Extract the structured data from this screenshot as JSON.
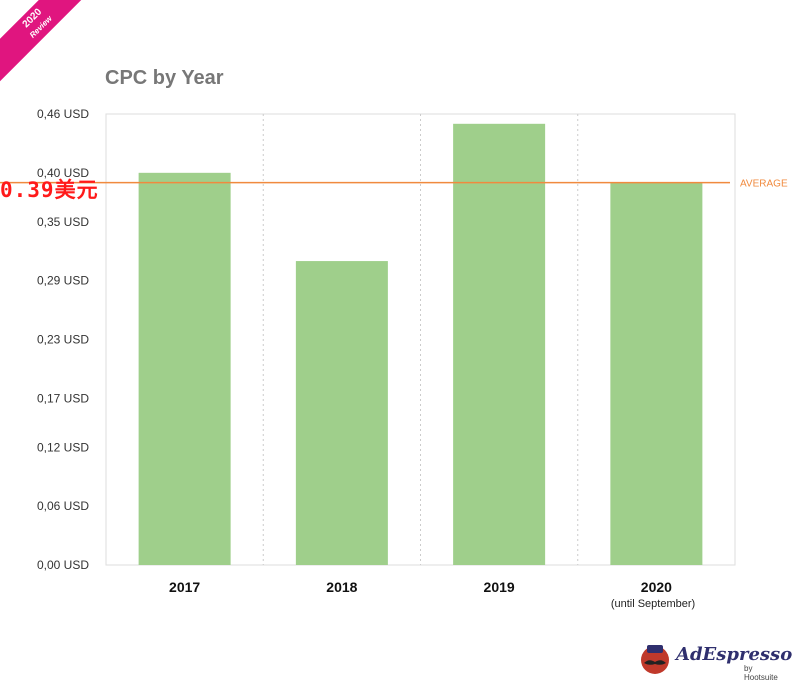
{
  "badge": {
    "year": "2020",
    "word": "Review"
  },
  "overlay_label": "0.39美元",
  "x_subtitle": "(until September)",
  "logo": {
    "name": "AdEspresso",
    "by": "by Hootsuite",
    "icon": "mustache-mascot-icon"
  },
  "colors": {
    "bar": "#9fcf8b",
    "average": "#f08a3e",
    "title": "#777777",
    "badge": "#e0157f"
  },
  "chart_data": {
    "type": "bar",
    "title": "CPC by Year",
    "categories": [
      "2017",
      "2018",
      "2019",
      "2020"
    ],
    "values": [
      0.4,
      0.31,
      0.45,
      0.39
    ],
    "average": {
      "label": "AVERAGE",
      "value": 0.39
    },
    "y_ticks": [
      {
        "value": 0.0,
        "label": "0,00 USD"
      },
      {
        "value": 0.06,
        "label": "0,06 USD"
      },
      {
        "value": 0.12,
        "label": "0,12 USD"
      },
      {
        "value": 0.17,
        "label": "0,17 USD"
      },
      {
        "value": 0.23,
        "label": "0,23 USD"
      },
      {
        "value": 0.29,
        "label": "0,29 USD"
      },
      {
        "value": 0.35,
        "label": "0,35 USD"
      },
      {
        "value": 0.4,
        "label": "0,40 USD"
      },
      {
        "value": 0.46,
        "label": "0,46 USD"
      }
    ],
    "ylim": [
      0,
      0.46
    ],
    "xlabel": "",
    "ylabel": "",
    "grid": true
  }
}
